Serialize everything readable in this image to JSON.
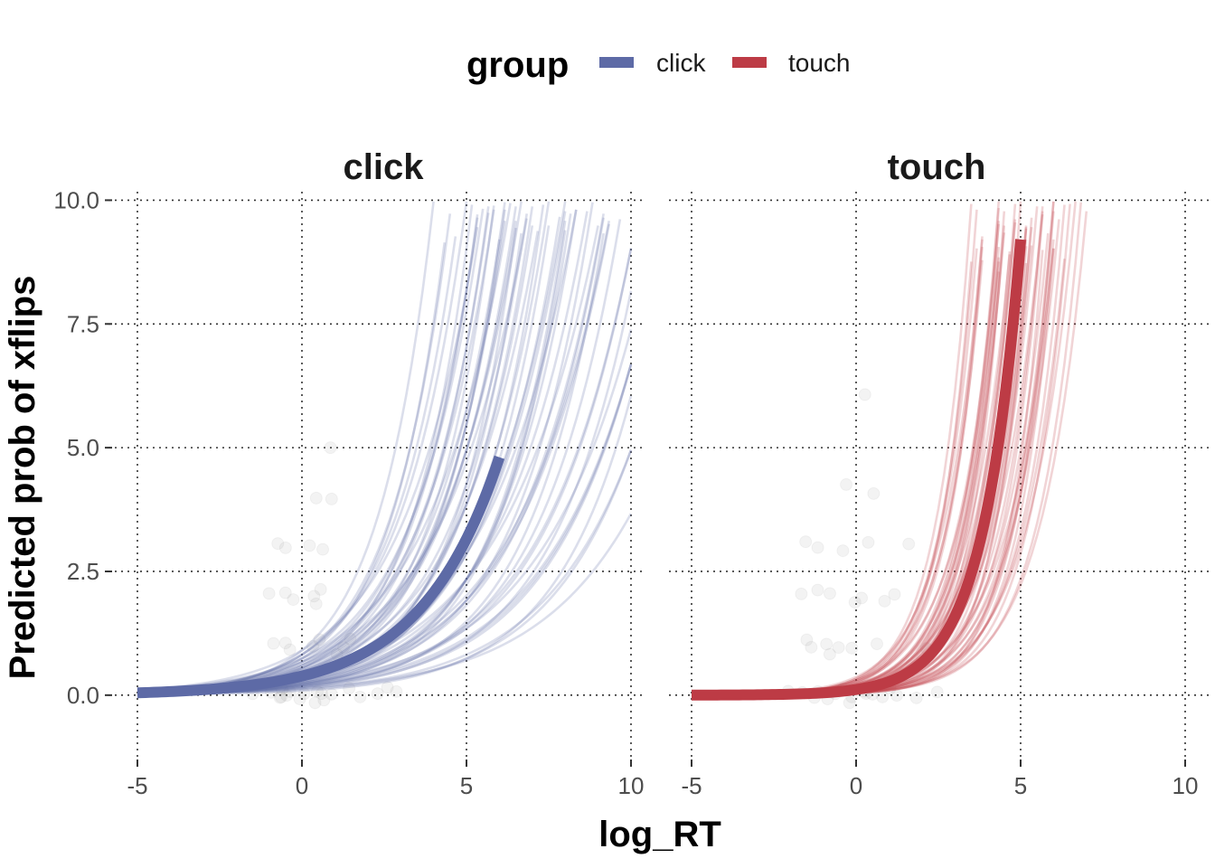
{
  "chart_data": {
    "type": "line",
    "xlabel": "log_RT",
    "ylabel": "Predicted prob of xflips",
    "xlim": [
      -5,
      10
    ],
    "ylim": [
      -1.3,
      10.3
    ],
    "x_ticks": [
      -5,
      0,
      5,
      10
    ],
    "x_tick_labels": [
      "-5",
      "0",
      "5",
      "10"
    ],
    "y_ticks": [
      0,
      2.5,
      5,
      7.5,
      10
    ],
    "y_tick_labels": [
      "0.0",
      "2.5",
      "5.0",
      "7.5",
      "10.0"
    ],
    "grid": true,
    "legend": {
      "title": "group",
      "position": "top",
      "entries": [
        "click",
        "touch"
      ]
    },
    "colors": {
      "click": "#5d6aa6",
      "touch": "#bd3b45",
      "points": "#7f7f7f"
    },
    "panels": [
      {
        "strip": "click",
        "group": "click",
        "mean_curve": {
          "x_range": [
            -5,
            6
          ],
          "a": -0.95,
          "b": 0.42
        },
        "draw_curves": [
          [
            -0.6,
            0.47
          ],
          [
            -1.1,
            0.43
          ],
          [
            -0.4,
            0.5
          ],
          [
            -1.4,
            0.4
          ],
          [
            -0.9,
            0.45
          ],
          [
            -0.2,
            0.55
          ],
          [
            -1.6,
            0.38
          ],
          [
            -0.8,
            0.5
          ],
          [
            -1.2,
            0.46
          ],
          [
            -0.5,
            0.52
          ],
          [
            -1.8,
            0.37
          ],
          [
            -0.3,
            0.58
          ],
          [
            -1.0,
            0.41
          ],
          [
            -1.5,
            0.43
          ],
          [
            -0.7,
            0.48
          ],
          [
            -1.3,
            0.39
          ],
          [
            -0.1,
            0.6
          ],
          [
            -2.0,
            0.36
          ],
          [
            -0.9,
            0.4
          ],
          [
            -1.1,
            0.5
          ],
          [
            -0.6,
            0.44
          ],
          [
            -1.7,
            0.41
          ],
          [
            -0.4,
            0.46
          ],
          [
            -1.2,
            0.37
          ],
          [
            -0.8,
            0.53
          ],
          [
            -1.9,
            0.4
          ],
          [
            -0.5,
            0.42
          ],
          [
            -1.4,
            0.45
          ],
          [
            -0.2,
            0.5
          ],
          [
            -1.0,
            0.47
          ],
          [
            -1.6,
            0.35
          ],
          [
            -0.7,
            0.41
          ],
          [
            -1.3,
            0.49
          ],
          [
            -0.3,
            0.47
          ],
          [
            -2.2,
            0.38
          ],
          [
            -0.9,
            0.52
          ],
          [
            -1.1,
            0.36
          ],
          [
            -0.6,
            0.56
          ],
          [
            -1.5,
            0.47
          ],
          [
            -0.4,
            0.39
          ],
          [
            -1.8,
            0.44
          ],
          [
            -0.8,
            0.37
          ],
          [
            -1.2,
            0.53
          ],
          [
            -0.1,
            0.44
          ],
          [
            -1.7,
            0.36
          ],
          [
            -1.0,
            0.44
          ],
          [
            -0.5,
            0.49
          ],
          [
            -1.4,
            0.34
          ],
          [
            -0.7,
            0.46
          ],
          [
            -2.4,
            0.42
          ],
          [
            -0.3,
            0.41
          ],
          [
            -1.1,
            0.39
          ],
          [
            -1.6,
            0.48
          ],
          [
            -0.9,
            0.35
          ],
          [
            -0.6,
            0.51
          ],
          [
            -1.3,
            0.43
          ],
          [
            -2.0,
            0.33
          ],
          [
            -0.2,
            0.52
          ],
          [
            -1.5,
            0.37
          ],
          [
            -0.8,
            0.45
          ]
        ],
        "points": [
          [
            -0.2,
            0
          ],
          [
            0.1,
            0.1
          ],
          [
            0.3,
            -0.1
          ],
          [
            -0.5,
            0
          ],
          [
            0.6,
            0.05
          ],
          [
            -0.8,
            -0.05
          ],
          [
            1.0,
            0
          ],
          [
            1.4,
            0.1
          ],
          [
            -1.1,
            0
          ],
          [
            0.0,
            -0.15
          ],
          [
            0.4,
            0.15
          ],
          [
            -0.3,
            0.05
          ],
          [
            1.8,
            0
          ],
          [
            2.2,
            0.05
          ],
          [
            0.8,
            -0.1
          ],
          [
            -0.6,
            0.1
          ],
          [
            0.2,
            0.95
          ],
          [
            -0.4,
            1.0
          ],
          [
            0.5,
            1.05
          ],
          [
            0.9,
            0.9
          ],
          [
            -0.8,
            1.1
          ],
          [
            1.2,
            1.0
          ],
          [
            -0.1,
            1.95
          ],
          [
            0.4,
            2.0
          ],
          [
            -0.6,
            2.05
          ],
          [
            0.7,
            2.1
          ],
          [
            -1.0,
            2.0
          ],
          [
            0.1,
            2.95
          ],
          [
            -0.4,
            3.05
          ],
          [
            0.6,
            3.0
          ],
          [
            -0.9,
            3.1
          ],
          [
            0.5,
            4.0
          ],
          [
            0.8,
            5.0
          ],
          [
            -0.2,
            0.9
          ],
          [
            1.5,
            1.1
          ],
          [
            2.5,
            0.1
          ],
          [
            3.0,
            0
          ],
          [
            -1.5,
            0.1
          ],
          [
            0.3,
            1.9
          ],
          [
            1.0,
            4.0
          ]
        ]
      },
      {
        "strip": "touch",
        "group": "touch",
        "mean_curve": {
          "x_range": [
            -5,
            5
          ],
          "a": -2.18,
          "b": 0.88
        },
        "draw_curves": [
          [
            -1.7,
            0.92
          ],
          [
            -2.5,
            0.8
          ],
          [
            -1.4,
            1.02
          ],
          [
            -2.8,
            0.85
          ],
          [
            -2.0,
            0.78
          ],
          [
            -1.2,
            0.88
          ],
          [
            -3.0,
            1.0
          ],
          [
            -1.9,
            0.96
          ],
          [
            -2.3,
            0.74
          ],
          [
            -1.5,
            0.83
          ],
          [
            -2.6,
            0.93
          ],
          [
            -1.8,
            0.72
          ],
          [
            -1.1,
            0.97
          ],
          [
            -3.2,
            0.9
          ],
          [
            -2.2,
            0.86
          ],
          [
            -1.6,
            0.76
          ],
          [
            -2.9,
            0.82
          ],
          [
            -1.3,
            0.92
          ],
          [
            -2.4,
            1.04
          ],
          [
            -2.0,
            0.7
          ],
          [
            -1.7,
            0.82
          ],
          [
            -2.7,
            0.77
          ],
          [
            -1.0,
            0.84
          ],
          [
            -2.1,
            0.98
          ],
          [
            -3.1,
            0.83
          ],
          [
            -1.9,
            0.77
          ],
          [
            -1.4,
            0.94
          ],
          [
            -2.5,
            0.72
          ],
          [
            -2.2,
            0.93
          ],
          [
            -1.6,
            0.87
          ],
          [
            -2.8,
            0.95
          ],
          [
            -1.2,
            0.78
          ],
          [
            -2.0,
            0.84
          ],
          [
            -3.3,
            0.97
          ],
          [
            -1.8,
            0.9
          ],
          [
            -2.3,
            0.81
          ],
          [
            -1.5,
            0.72
          ],
          [
            -2.6,
            0.86
          ],
          [
            -1.1,
            0.9
          ],
          [
            -2.9,
            0.74
          ],
          [
            -2.1,
            0.92
          ],
          [
            -1.7,
            0.74
          ],
          [
            -2.4,
            0.9
          ],
          [
            -1.3,
            0.82
          ],
          [
            -3.0,
            0.88
          ],
          [
            -2.0,
            0.97
          ],
          [
            -1.5,
            0.79
          ],
          [
            -2.7,
            0.82
          ],
          [
            -1.9,
            0.86
          ],
          [
            -1.2,
            0.95
          ],
          [
            -2.5,
            0.96
          ],
          [
            -2.2,
            0.76
          ],
          [
            -1.6,
            0.9
          ],
          [
            -3.1,
            0.79
          ],
          [
            -1.8,
            0.8
          ],
          [
            -2.3,
            0.88
          ]
        ],
        "points": [
          [
            -1.0,
            0
          ],
          [
            -0.6,
            0.1
          ],
          [
            -0.3,
            -0.1
          ],
          [
            0.0,
            0
          ],
          [
            0.3,
            0.05
          ],
          [
            -1.4,
            -0.05
          ],
          [
            0.6,
            0
          ],
          [
            1.0,
            0.1
          ],
          [
            -1.8,
            0
          ],
          [
            -0.8,
            -0.15
          ],
          [
            0.2,
            0.15
          ],
          [
            1.4,
            0.05
          ],
          [
            -0.5,
            1.0
          ],
          [
            -1.0,
            1.05
          ],
          [
            0.0,
            0.95
          ],
          [
            -1.5,
            1.1
          ],
          [
            0.5,
            1.0
          ],
          [
            -0.7,
            2.0
          ],
          [
            -1.2,
            2.05
          ],
          [
            -0.2,
            1.95
          ],
          [
            -1.6,
            2.1
          ],
          [
            0.1,
            2.0
          ],
          [
            -1.0,
            3.0
          ],
          [
            -1.5,
            3.1
          ],
          [
            -0.5,
            2.9
          ],
          [
            0.5,
            3.05
          ],
          [
            -0.3,
            4.2
          ],
          [
            0.4,
            4.0
          ],
          [
            -0.3,
            0.2
          ],
          [
            1.8,
            0
          ],
          [
            2.3,
            0.1
          ],
          [
            -2.0,
            0.1
          ],
          [
            0.8,
            1.9
          ],
          [
            -1.2,
            0.95
          ],
          [
            1.2,
            2.0
          ],
          [
            1.5,
            3.0
          ],
          [
            0.4,
            6.0
          ],
          [
            -0.8,
            0.9
          ],
          [
            2.0,
            1.0
          ],
          [
            0.9,
            0
          ]
        ]
      }
    ]
  }
}
